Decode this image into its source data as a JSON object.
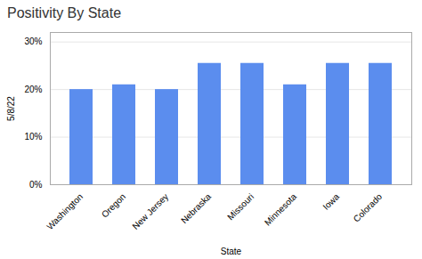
{
  "chart_data": {
    "type": "bar",
    "title": "Positivity By State",
    "xlabel": "State",
    "ylabel": "5/8/22",
    "categories": [
      "Washington",
      "Oregon",
      "New Jersey",
      "Nebraska",
      "Missouri",
      "Minnesota",
      "Iowa",
      "Colorado"
    ],
    "values": [
      20.0,
      21.0,
      20.0,
      25.5,
      25.5,
      21.0,
      25.5,
      25.5
    ],
    "color": "#5b8dee",
    "ylim": [
      0,
      32
    ],
    "yticks": [
      {
        "value": 0,
        "label": "0%"
      },
      {
        "value": 10,
        "label": "10%"
      },
      {
        "value": 20,
        "label": "20%"
      },
      {
        "value": 30,
        "label": "30%"
      }
    ],
    "grid": true
  }
}
